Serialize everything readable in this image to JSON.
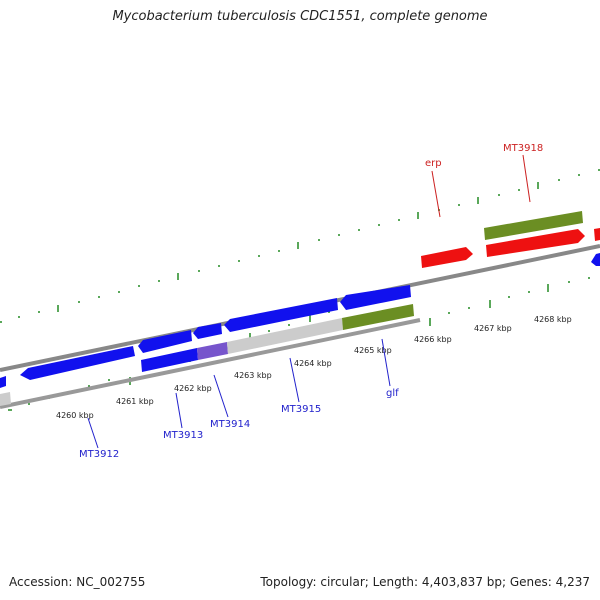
{
  "title": "Mycobacterium tuberculosis CDC1551, complete genome",
  "footer": {
    "accession": "Accession: NC_002755",
    "stats": "Topology: circular; Length: 4,403,837 bp; Genes: 4,237"
  },
  "colors": {
    "forward_gene": "#ee1111",
    "reverse_gene": "#1111ee",
    "hypothetical": "#6b8e23",
    "backbone": "#888888",
    "tick": "#228b22",
    "rev_label": "#2222cc",
    "fwd_label": "#cc2222"
  },
  "scale": {
    "tick_labels": [
      "4260 kbp",
      "4261 kbp",
      "4262 kbp",
      "4263 kbp",
      "4264 kbp",
      "4265 kbp",
      "4266 kbp",
      "4267 kbp",
      "4268 kbp"
    ]
  },
  "gene_labels": [
    {
      "name": "MT3912",
      "strand": "reverse"
    },
    {
      "name": "MT3913",
      "strand": "reverse"
    },
    {
      "name": "MT3914",
      "strand": "reverse"
    },
    {
      "name": "MT3915",
      "strand": "reverse"
    },
    {
      "name": "glf",
      "strand": "reverse"
    },
    {
      "name": "erp",
      "strand": "forward"
    },
    {
      "name": "MT3918",
      "strand": "forward"
    }
  ]
}
